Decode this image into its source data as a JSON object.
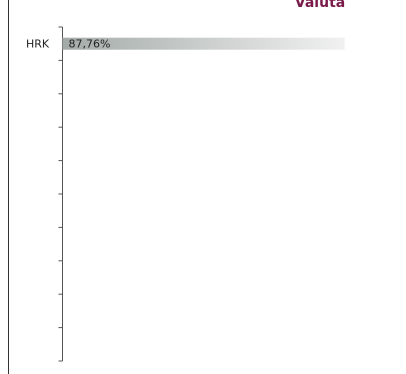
{
  "chart_data": {
    "type": "bar",
    "orientation": "horizontal",
    "title": "Valuta",
    "categories": [
      "HRK"
    ],
    "values": [
      87.76
    ],
    "value_labels": [
      "87,76%"
    ],
    "xlim": [
      0,
      100
    ]
  }
}
